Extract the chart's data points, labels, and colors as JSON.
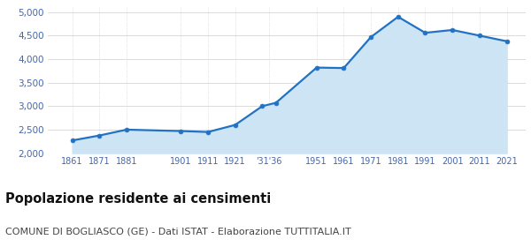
{
  "years": [
    1861,
    1871,
    1881,
    1901,
    1911,
    1921,
    1931,
    1936,
    1951,
    1961,
    1971,
    1981,
    1991,
    2001,
    2011,
    2021
  ],
  "population": [
    2270,
    2375,
    2500,
    2470,
    2450,
    2600,
    3000,
    3070,
    3820,
    3810,
    4470,
    4900,
    4560,
    4620,
    4500,
    4380
  ],
  "x_tick_positions": [
    1861,
    1871,
    1881,
    1901,
    1911,
    1921,
    1933.5,
    1951,
    1961,
    1971,
    1981,
    1991,
    2001,
    2011,
    2021
  ],
  "x_tick_labels": [
    "1861",
    "1871",
    "1881",
    "1901",
    "1911",
    "1921",
    "'31'36",
    "1951",
    "1961",
    "1971",
    "1981",
    "1991",
    "2001",
    "2011",
    "2021"
  ],
  "line_color": "#2272c3",
  "fill_color": "#cde4f5",
  "marker_size": 3.5,
  "line_width": 1.6,
  "ylim": [
    2000,
    5100
  ],
  "xlim": [
    1852,
    2028
  ],
  "yticks": [
    2000,
    2500,
    3000,
    3500,
    4000,
    4500,
    5000
  ],
  "ytick_labels": [
    "2,000",
    "2,500",
    "3,000",
    "3,500",
    "4,000",
    "4,500",
    "5,000"
  ],
  "title": "Popolazione residente ai censimenti",
  "subtitle": "COMUNE DI BOGLIASCO (GE) - Dati ISTAT - Elaborazione TUTTITALIA.IT",
  "bg_color": "#ffffff",
  "grid_color": "#cccccc",
  "tick_color": "#4466aa",
  "tick_label_color": "#4466aa",
  "title_fontsize": 10.5,
  "subtitle_fontsize": 8,
  "xtick_fontsize": 7,
  "ytick_fontsize": 7.5
}
